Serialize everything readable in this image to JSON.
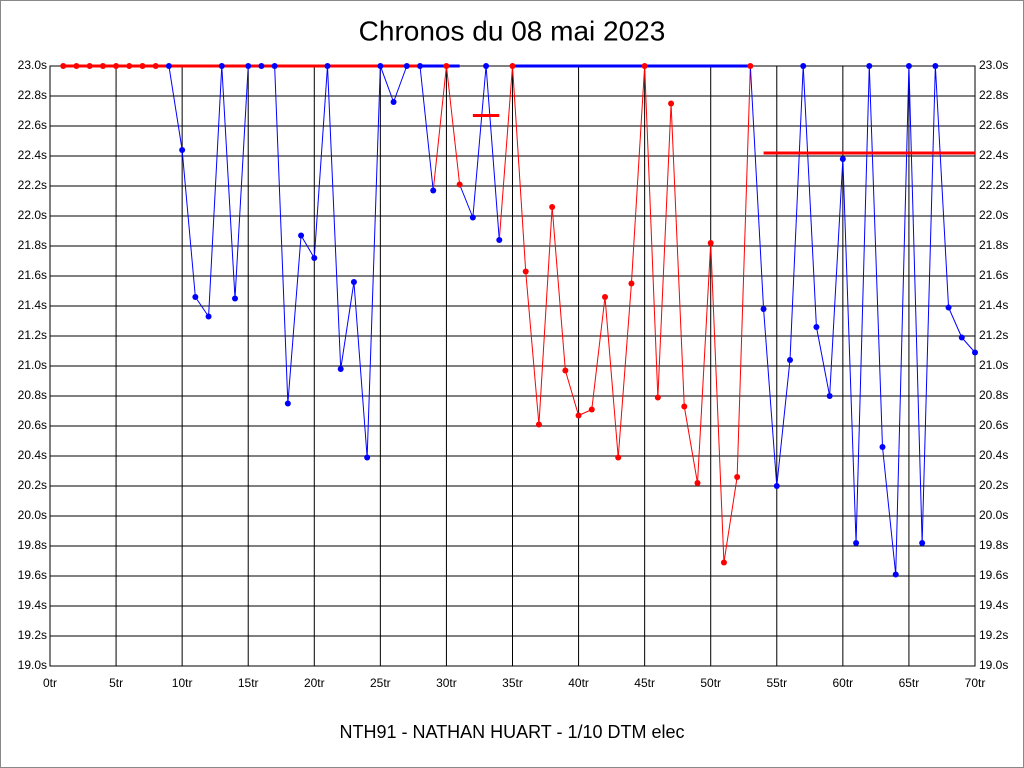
{
  "chart_data": {
    "type": "line",
    "title": "Chronos du 08 mai 2023",
    "footer": "NTH91 - NATHAN HUART - 1/10 DTM elec",
    "x": [
      1,
      2,
      3,
      4,
      5,
      6,
      7,
      8,
      9,
      10,
      11,
      12,
      13,
      14,
      15,
      16,
      17,
      18,
      19,
      20,
      21,
      22,
      23,
      24,
      25,
      26,
      27,
      28,
      29,
      30,
      31,
      32,
      33,
      34,
      35,
      36,
      37,
      38,
      39,
      40,
      41,
      42,
      43,
      44,
      45,
      46,
      47,
      48,
      49,
      50,
      51,
      52,
      53,
      54,
      55,
      56,
      57,
      58,
      59,
      60,
      61,
      62,
      63,
      64,
      65,
      66,
      67,
      68,
      69,
      70
    ],
    "values": [
      23,
      23,
      23,
      23,
      23,
      23,
      23,
      23,
      23,
      22.44,
      21.46,
      21.33,
      23,
      21.45,
      23,
      23,
      23,
      20.75,
      21.87,
      21.72,
      23,
      20.98,
      21.56,
      20.39,
      23,
      22.76,
      23,
      23,
      22.17,
      23,
      22.21,
      21.99,
      23,
      21.84,
      23,
      21.63,
      20.61,
      22.06,
      20.97,
      20.67,
      20.71,
      21.46,
      20.39,
      21.55,
      23,
      20.79,
      22.75,
      20.73,
      20.22,
      21.82,
      19.69,
      20.26,
      23,
      21.38,
      20.2,
      21.04,
      23,
      21.26,
      20.8,
      22.38,
      19.82,
      23,
      20.46,
      19.61,
      23,
      19.82,
      23,
      21.39,
      21.19,
      21.09
    ],
    "point_colors": [
      "#ff0000",
      "#ff0000",
      "#ff0000",
      "#ff0000",
      "#ff0000",
      "#ff0000",
      "#ff0000",
      "#ff0000",
      "#0000ff",
      "#0000ff",
      "#0000ff",
      "#0000ff",
      "#0000ff",
      "#0000ff",
      "#0000ff",
      "#0000ff",
      "#0000ff",
      "#0000ff",
      "#0000ff",
      "#0000ff",
      "#0000ff",
      "#0000ff",
      "#0000ff",
      "#0000ff",
      "#0000ff",
      "#0000ff",
      "#0000ff",
      "#0000ff",
      "#0000ff",
      "#ff0000",
      "#ff0000",
      "#0000ff",
      "#0000ff",
      "#0000ff",
      "#ff0000",
      "#ff0000",
      "#ff0000",
      "#ff0000",
      "#ff0000",
      "#ff0000",
      "#ff0000",
      "#ff0000",
      "#ff0000",
      "#ff0000",
      "#ff0000",
      "#ff0000",
      "#ff0000",
      "#ff0000",
      "#ff0000",
      "#ff0000",
      "#ff0000",
      "#ff0000",
      "#ff0000",
      "#0000ff",
      "#0000ff",
      "#0000ff",
      "#0000ff",
      "#0000ff",
      "#0000ff",
      "#0000ff",
      "#0000ff",
      "#0000ff",
      "#0000ff",
      "#0000ff",
      "#0000ff",
      "#0000ff",
      "#0000ff",
      "#0000ff",
      "#0000ff",
      "#0000ff"
    ],
    "reference_lines": [
      {
        "x": [
          1,
          28
        ],
        "y": 23,
        "color": "#ff0000"
      },
      {
        "x": [
          28,
          31
        ],
        "y": 23,
        "color": "#0000ff"
      },
      {
        "x": [
          32,
          34
        ],
        "y": 22.67,
        "color": "#ff0000"
      },
      {
        "x": [
          35,
          53
        ],
        "y": 23,
        "color": "#0000ff"
      },
      {
        "x": [
          54,
          70
        ],
        "y": 22.42,
        "color": "#ff0000"
      }
    ],
    "xlim": [
      0,
      70
    ],
    "xticks": [
      {
        "value": 0,
        "label": "0tr"
      },
      {
        "value": 5,
        "label": "5tr"
      },
      {
        "value": 10,
        "label": "10tr"
      },
      {
        "value": 15,
        "label": "15tr"
      },
      {
        "value": 20,
        "label": "20tr"
      },
      {
        "value": 25,
        "label": "25tr"
      },
      {
        "value": 30,
        "label": "30tr"
      },
      {
        "value": 35,
        "label": "35tr"
      },
      {
        "value": 40,
        "label": "40tr"
      },
      {
        "value": 45,
        "label": "45tr"
      },
      {
        "value": 50,
        "label": "50tr"
      },
      {
        "value": 55,
        "label": "55tr"
      },
      {
        "value": 60,
        "label": "60tr"
      },
      {
        "value": 65,
        "label": "65tr"
      },
      {
        "value": 70,
        "label": "70tr"
      }
    ],
    "ylim": [
      19,
      23
    ],
    "yticks": [
      {
        "value": 19.0,
        "label": "19.0s"
      },
      {
        "value": 19.2,
        "label": "19.2s"
      },
      {
        "value": 19.4,
        "label": "19.4s"
      },
      {
        "value": 19.6,
        "label": "19.6s"
      },
      {
        "value": 19.8,
        "label": "19.8s"
      },
      {
        "value": 20.0,
        "label": "20.0s"
      },
      {
        "value": 20.2,
        "label": "20.2s"
      },
      {
        "value": 20.4,
        "label": "20.4s"
      },
      {
        "value": 20.6,
        "label": "20.6s"
      },
      {
        "value": 20.8,
        "label": "20.8s"
      },
      {
        "value": 21.0,
        "label": "21.0s"
      },
      {
        "value": 21.2,
        "label": "21.2s"
      },
      {
        "value": 21.4,
        "label": "21.4s"
      },
      {
        "value": 21.6,
        "label": "21.6s"
      },
      {
        "value": 21.8,
        "label": "21.8s"
      },
      {
        "value": 22.0,
        "label": "22.0s"
      },
      {
        "value": 22.2,
        "label": "22.2s"
      },
      {
        "value": 22.4,
        "label": "22.4s"
      },
      {
        "value": 22.6,
        "label": "22.6s"
      },
      {
        "value": 22.8,
        "label": "22.8s"
      },
      {
        "value": 23.0,
        "label": "23.0s"
      }
    ],
    "grid": true
  }
}
